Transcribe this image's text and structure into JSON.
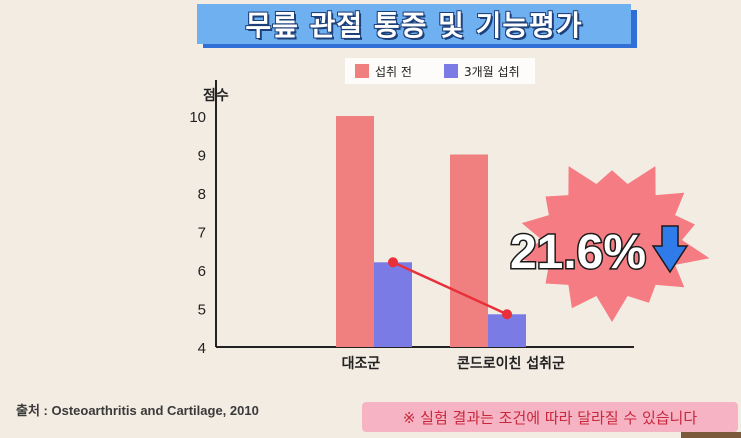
{
  "title": "무릎 관절 통증 및 기능평가",
  "source": "출처 : Osteoarthritis and Cartilage, 2010",
  "note": "※ 실험 결과는 조건에 따라 달라질 수 있습니다",
  "callout": {
    "value": "21.6%",
    "icon": "arrow-down-icon",
    "burst_color": "#f47c82",
    "arrow_color": "#2f7bea"
  },
  "chart_data": {
    "type": "bar",
    "ylabel": "점수",
    "ylim": [
      4,
      10
    ],
    "yticks": [
      4,
      5,
      6,
      7,
      8,
      9,
      10
    ],
    "categories": [
      "대조군",
      "콘드로이친 섭취군"
    ],
    "legend_position": "top",
    "series": [
      {
        "name": "섭취 전",
        "color": "#f08080",
        "values": [
          10,
          9
        ]
      },
      {
        "name": "3개월 섭취",
        "color": "#7b7be6",
        "values": [
          6.2,
          4.85
        ]
      }
    ],
    "trend_line": {
      "series": "3개월 섭취",
      "color": "#e8303a"
    }
  }
}
